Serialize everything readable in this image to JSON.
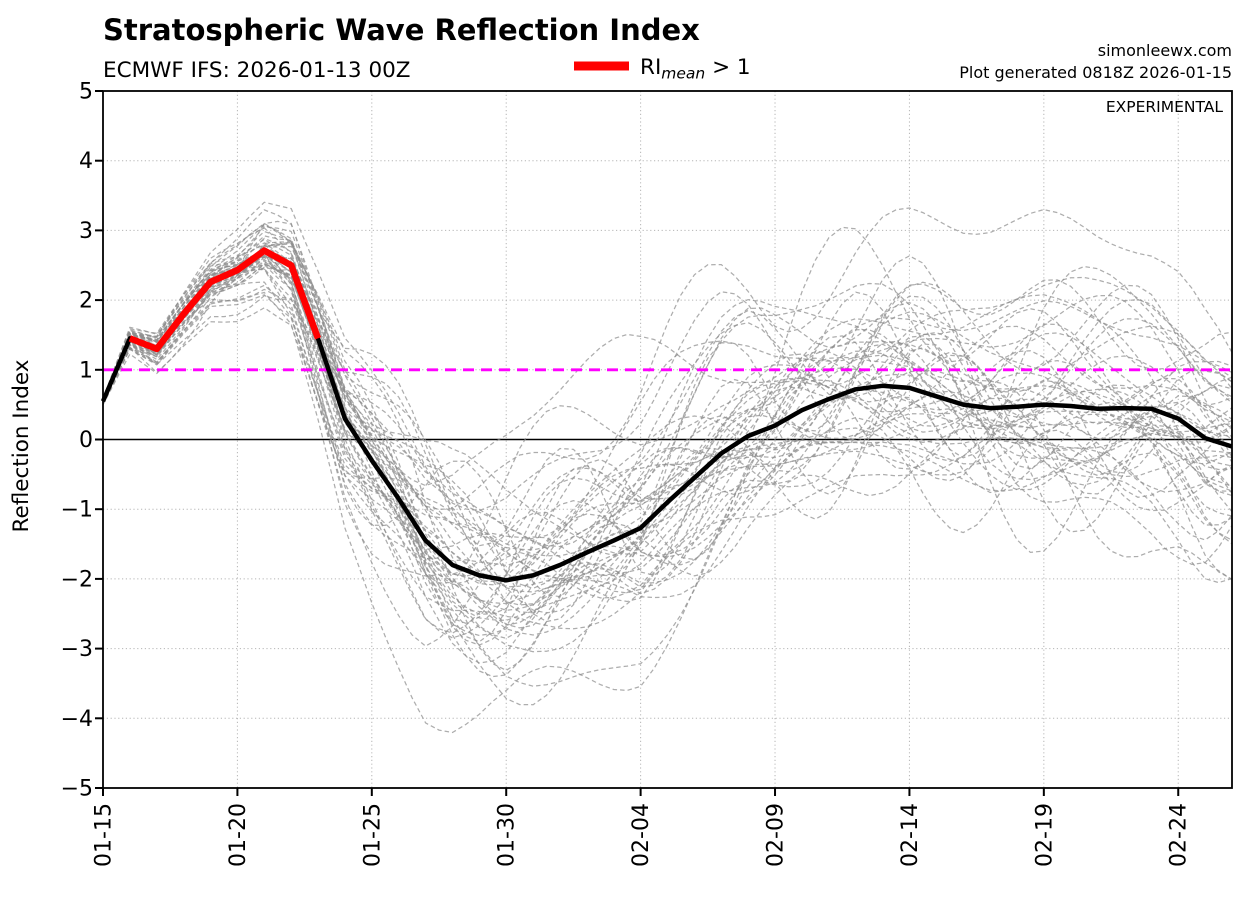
{
  "chart_data": {
    "type": "line",
    "title": "Stratospheric Wave Reflection Index",
    "subtitle": "ECMWF IFS: 2026-01-13 00Z",
    "credit": "simonleewx.com",
    "generated_note": "Plot generated 0818Z 2026-01-15",
    "watermark": "EXPERIMENTAL",
    "ylabel": "Reflection Index",
    "legend": {
      "ri": "RI",
      "sub": "mean",
      "rest": " > 1",
      "swatch_color": "#ff0000"
    },
    "ylim": [
      -5,
      5
    ],
    "yticks": [
      {
        "label": "5",
        "value": 5
      },
      {
        "label": "4",
        "value": 4
      },
      {
        "label": "3",
        "value": 3
      },
      {
        "label": "2",
        "value": 2
      },
      {
        "label": "1",
        "value": 1
      },
      {
        "label": "0",
        "value": 0
      },
      {
        "label": "−1",
        "value": -1
      },
      {
        "label": "−2",
        "value": -2
      },
      {
        "label": "−3",
        "value": -3
      },
      {
        "label": "−4",
        "value": -4
      },
      {
        "label": "−5",
        "value": -5
      }
    ],
    "xlim_days": [
      0,
      42
    ],
    "xticks": [
      {
        "label": "01-15",
        "day": 0
      },
      {
        "label": "01-20",
        "day": 5
      },
      {
        "label": "01-25",
        "day": 10
      },
      {
        "label": "01-30",
        "day": 15
      },
      {
        "label": "02-04",
        "day": 20
      },
      {
        "label": "02-09",
        "day": 25
      },
      {
        "label": "02-14",
        "day": 30
      },
      {
        "label": "02-19",
        "day": 35
      },
      {
        "label": "02-24",
        "day": 40
      }
    ],
    "grid": true,
    "grid_color": "#b5b5b5",
    "threshold_line": {
      "value": 1,
      "color": "#ff00ff",
      "style": "dashed"
    },
    "zero_line": {
      "value": 0,
      "color": "#000000"
    },
    "mean_series": {
      "name": "ensemble mean reflection index",
      "color": "#000000",
      "days": [
        0,
        1,
        2,
        3,
        4,
        5,
        6,
        7,
        8,
        9,
        10,
        11,
        12,
        13,
        14,
        15,
        16,
        17,
        18,
        19,
        20,
        21,
        22,
        23,
        24,
        25,
        26,
        27,
        28,
        29,
        30,
        31,
        32,
        33,
        34,
        35,
        36,
        37,
        38,
        39,
        40,
        41,
        42
      ],
      "values": [
        0.55,
        1.45,
        1.3,
        1.8,
        2.26,
        2.43,
        2.71,
        2.5,
        1.45,
        0.3,
        -0.3,
        -0.85,
        -1.45,
        -1.8,
        -1.95,
        -2.02,
        -1.95,
        -1.8,
        -1.62,
        -1.45,
        -1.27,
        -0.9,
        -0.55,
        -0.2,
        0.05,
        0.2,
        0.42,
        0.58,
        0.72,
        0.77,
        0.74,
        0.62,
        0.5,
        0.45,
        0.47,
        0.5,
        0.48,
        0.44,
        0.45,
        0.44,
        0.3,
        0.02,
        -0.1
      ]
    },
    "highlight_segment": {
      "name": "RI mean > 1",
      "color": "#ff0000",
      "day_start": 1,
      "day_end": 8
    },
    "ensemble": {
      "n_members": 51,
      "color": "#8d8d8d",
      "opacity": 0.72,
      "line_style": "dashed",
      "seed": 20260113,
      "harmonics": 14,
      "spread_profile": {
        "days": [
          0,
          1,
          2,
          4,
          6,
          8,
          10,
          12,
          15,
          20,
          25,
          30,
          35,
          42
        ],
        "sigma": [
          0.02,
          0.08,
          0.12,
          0.18,
          0.3,
          0.45,
          0.6,
          0.72,
          0.8,
          0.85,
          0.8,
          0.8,
          0.85,
          0.8
        ]
      }
    }
  }
}
